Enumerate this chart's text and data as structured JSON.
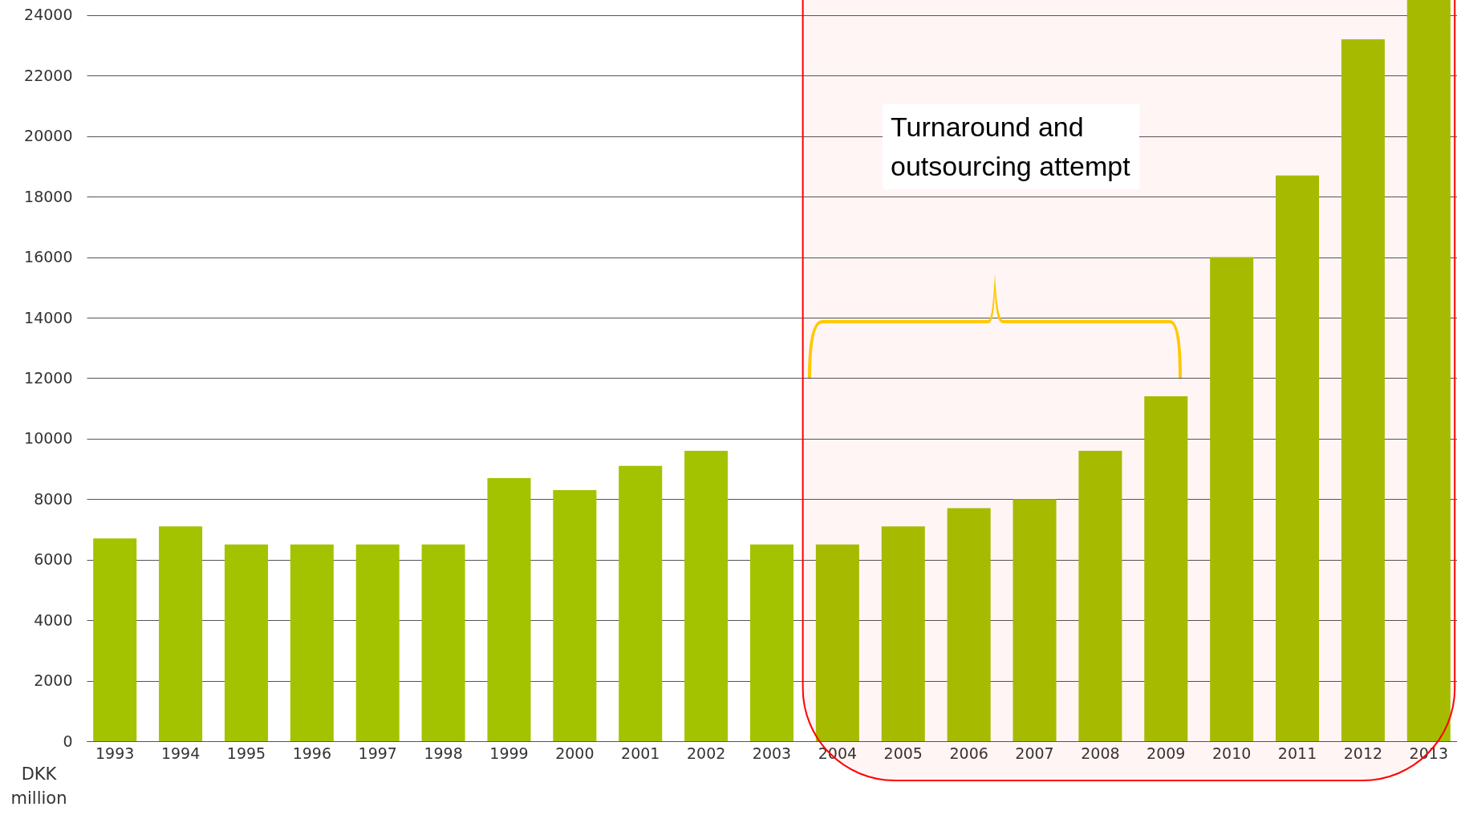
{
  "chart_data": {
    "type": "bar",
    "ylabel": "DKK million",
    "categories": [
      "1993",
      "1994",
      "1995",
      "1996",
      "1997",
      "1998",
      "1999",
      "2000",
      "2001",
      "2002",
      "2003",
      "2004",
      "2005",
      "2006",
      "2007",
      "2008",
      "2009",
      "2010",
      "2011",
      "2012",
      "2013"
    ],
    "values": [
      6700,
      7100,
      6500,
      6500,
      6500,
      6500,
      8700,
      8300,
      9100,
      9600,
      6500,
      6500,
      7100,
      7700,
      8000,
      9600,
      11400,
      16000,
      18700,
      23200,
      24500
    ],
    "color": "#a3c300",
    "ylim": [
      0,
      24500
    ],
    "yticks": [
      0,
      2000,
      4000,
      6000,
      8000,
      10000,
      12000,
      14000,
      16000,
      18000,
      20000,
      22000,
      24000
    ],
    "grid": "y",
    "annotations": [
      "Turnaround and outsourcing attempt"
    ],
    "bands": [
      {
        "axis": "x",
        "from": "2004",
        "to": "2013",
        "color": "#ff0000"
      }
    ]
  }
}
